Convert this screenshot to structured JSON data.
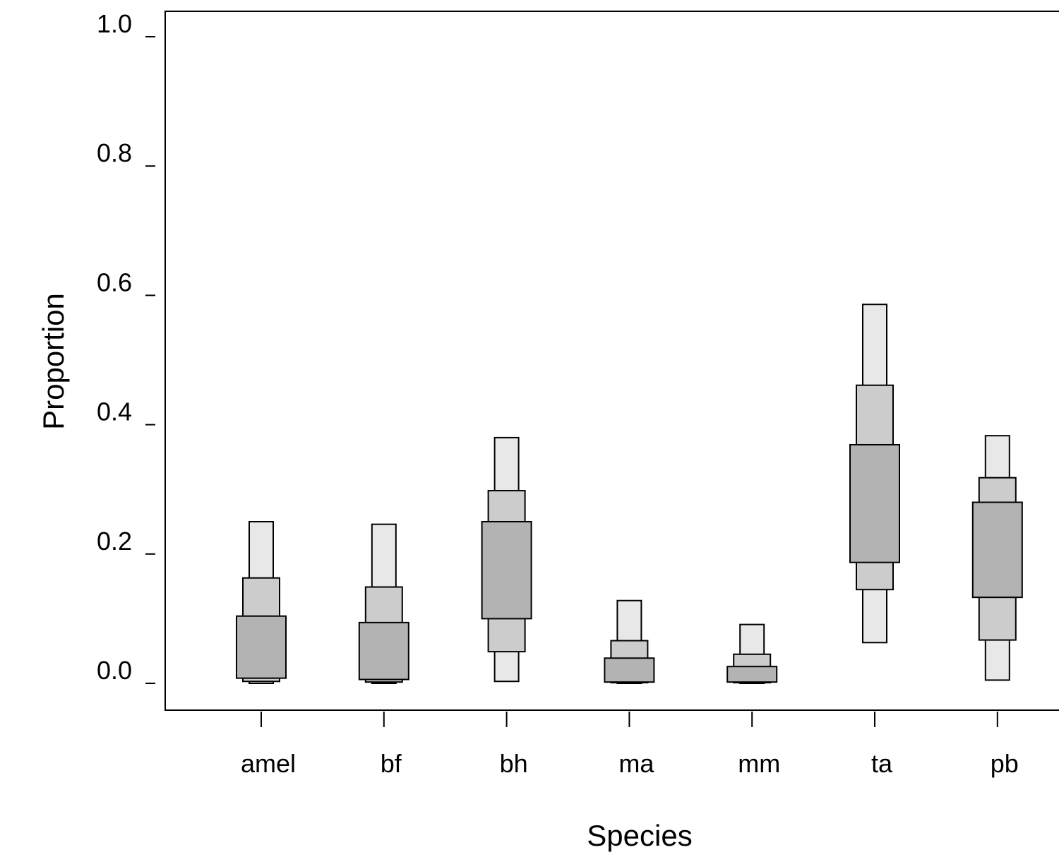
{
  "chart_data": {
    "type": "boxplot",
    "xlabel": "Species",
    "ylabel": "Proportion",
    "ylim": [
      0.0,
      1.0
    ],
    "yticks": [
      "0.0",
      "0.2",
      "0.4",
      "0.6",
      "0.8",
      "1.0"
    ],
    "ytick_values": [
      0.0,
      0.2,
      0.4,
      0.6,
      0.8,
      1.0
    ],
    "categories": [
      "amel",
      "bf",
      "bh",
      "ma",
      "mm",
      "ta",
      "pb"
    ],
    "band_colors": {
      "inner": "#b3b3b3",
      "middle": "#cccccc",
      "outer": "#e8e8e8"
    },
    "series": [
      {
        "category": "amel",
        "inner": [
          0.008,
          0.104
        ],
        "middle": [
          0.003,
          0.163
        ],
        "outer": [
          0.0,
          0.25
        ]
      },
      {
        "category": "bf",
        "inner": [
          0.006,
          0.094
        ],
        "middle": [
          0.002,
          0.149
        ],
        "outer": [
          0.0,
          0.246
        ]
      },
      {
        "category": "bh",
        "inner": [
          0.1,
          0.25
        ],
        "middle": [
          0.049,
          0.298
        ],
        "outer": [
          0.003,
          0.38
        ]
      },
      {
        "category": "ma",
        "inner": [
          0.002,
          0.039
        ],
        "middle": [
          0.001,
          0.066
        ],
        "outer": [
          0.0,
          0.128
        ]
      },
      {
        "category": "mm",
        "inner": [
          0.002,
          0.026
        ],
        "middle": [
          0.001,
          0.045
        ],
        "outer": [
          0.0,
          0.091
        ]
      },
      {
        "category": "ta",
        "inner": [
          0.187,
          0.369
        ],
        "middle": [
          0.145,
          0.461
        ],
        "outer": [
          0.063,
          0.586
        ]
      },
      {
        "category": "pb",
        "inner": [
          0.133,
          0.28
        ],
        "middle": [
          0.067,
          0.318
        ],
        "outer": [
          0.005,
          0.383
        ]
      }
    ]
  }
}
